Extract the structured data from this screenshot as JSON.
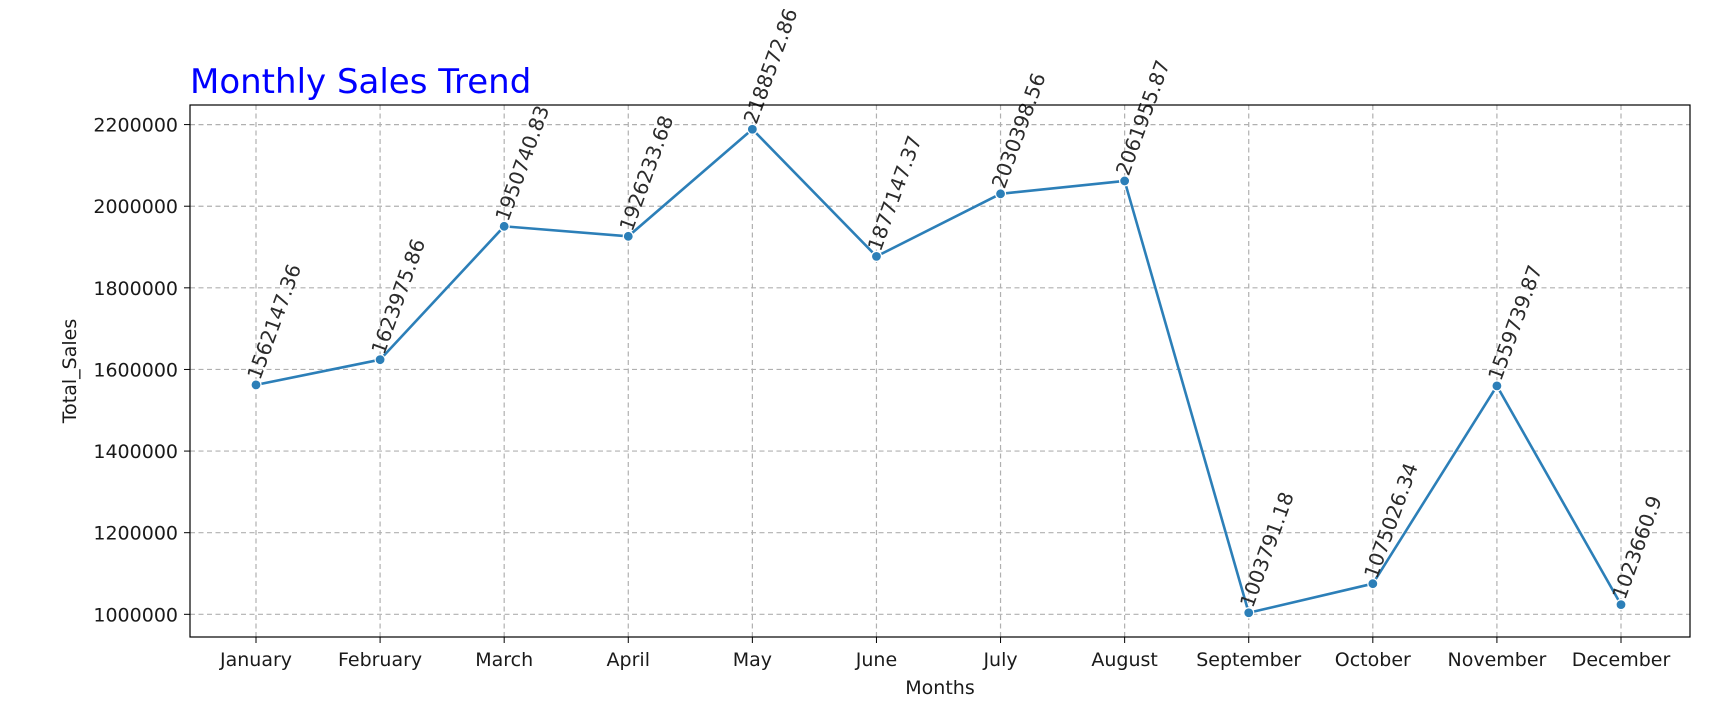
{
  "chart_data": {
    "type": "line",
    "title": "Monthly Sales Trend",
    "xlabel": "Months",
    "ylabel": "Total_Sales",
    "categories": [
      "January",
      "February",
      "March",
      "April",
      "May",
      "June",
      "July",
      "August",
      "September",
      "October",
      "November",
      "December"
    ],
    "series": [
      {
        "name": "Total_Sales",
        "values": [
          1562147.36,
          1623975.86,
          1950740.83,
          1926233.68,
          2188572.86,
          1877147.37,
          2030398.56,
          2061955.87,
          1003791.18,
          1075026.34,
          1559739.87,
          1023660.9
        ],
        "labels": [
          "1562147.36",
          "1623975.86",
          "1950740.83",
          "1926233.68",
          "2188572.86",
          "1877147.37",
          "2030398.56",
          "2061955.87",
          "1003791.18",
          "1075026.34",
          "1559739.87",
          "1023660.9"
        ]
      }
    ],
    "ylim": [
      944402,
      2248013
    ],
    "yticks": [
      1000000,
      1200000,
      1400000,
      1600000,
      1800000,
      2000000,
      2200000
    ],
    "ytick_labels": [
      "1000000",
      "1200000",
      "1400000",
      "1600000",
      "1800000",
      "2000000",
      "2200000"
    ],
    "grid": true,
    "line_color": "#2c7fb8",
    "title_color": "#0000ff"
  }
}
